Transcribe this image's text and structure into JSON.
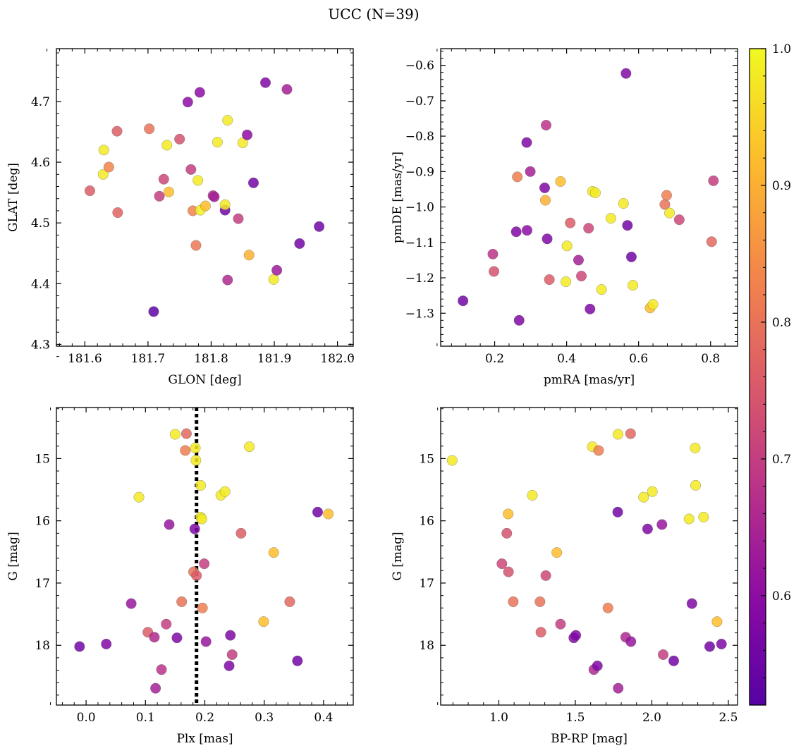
{
  "figure_title": "UCC (N=39)",
  "colorbar": {
    "colormap": "plasma",
    "range": [
      0.52,
      1.0
    ],
    "ticks": [
      0.6,
      0.7,
      0.8,
      0.9,
      1.0
    ],
    "tick_labels": [
      "0.6",
      "0.7",
      "0.8",
      "0.9",
      "1.0"
    ]
  },
  "chart_data": [
    {
      "type": "scatter",
      "xlabel": "GLON [deg]",
      "ylabel": "GLAT [deg]",
      "xlim": [
        181.555,
        182.025
      ],
      "ylim": [
        4.297,
        4.787
      ],
      "xticks": [
        181.6,
        181.7,
        181.8,
        181.9,
        182.0
      ],
      "xtick_labels": [
        "181.6",
        "181.7",
        "181.8",
        "181.9",
        "182.0"
      ],
      "yticks": [
        4.3,
        4.4,
        4.5,
        4.6,
        4.7
      ],
      "ytick_labels": [
        "4.3",
        "4.4",
        "4.5",
        "4.6",
        "4.7"
      ],
      "points": [
        {
          "x": 181.608,
          "y": 4.553,
          "c": 0.76
        },
        {
          "x": 181.63,
          "y": 4.62,
          "c": 0.98
        },
        {
          "x": 181.629,
          "y": 4.58,
          "c": 0.98
        },
        {
          "x": 181.638,
          "y": 4.592,
          "c": 0.83
        },
        {
          "x": 181.651,
          "y": 4.651,
          "c": 0.76
        },
        {
          "x": 181.652,
          "y": 4.517,
          "c": 0.77
        },
        {
          "x": 181.702,
          "y": 4.655,
          "c": 0.8
        },
        {
          "x": 181.709,
          "y": 4.354,
          "c": 0.53
        },
        {
          "x": 181.718,
          "y": 4.544,
          "c": 0.7
        },
        {
          "x": 181.725,
          "y": 4.572,
          "c": 0.72
        },
        {
          "x": 181.73,
          "y": 4.628,
          "c": 0.98
        },
        {
          "x": 181.733,
          "y": 4.551,
          "c": 0.92
        },
        {
          "x": 181.75,
          "y": 4.638,
          "c": 0.74
        },
        {
          "x": 181.763,
          "y": 4.699,
          "c": 0.6
        },
        {
          "x": 181.768,
          "y": 4.588,
          "c": 0.7
        },
        {
          "x": 181.771,
          "y": 4.52,
          "c": 0.83
        },
        {
          "x": 181.776,
          "y": 4.463,
          "c": 0.81
        },
        {
          "x": 181.779,
          "y": 4.57,
          "c": 0.98
        },
        {
          "x": 181.782,
          "y": 4.715,
          "c": 0.6
        },
        {
          "x": 181.783,
          "y": 4.521,
          "c": 0.99
        },
        {
          "x": 181.791,
          "y": 4.528,
          "c": 0.92
        },
        {
          "x": 181.803,
          "y": 4.545,
          "c": 0.66
        },
        {
          "x": 181.805,
          "y": 4.543,
          "c": 0.64
        },
        {
          "x": 181.81,
          "y": 4.633,
          "c": 0.98
        },
        {
          "x": 181.822,
          "y": 4.521,
          "c": 0.56
        },
        {
          "x": 181.822,
          "y": 4.53,
          "c": 0.98
        },
        {
          "x": 181.826,
          "y": 4.406,
          "c": 0.66
        },
        {
          "x": 181.826,
          "y": 4.669,
          "c": 0.98
        },
        {
          "x": 181.843,
          "y": 4.507,
          "c": 0.7
        },
        {
          "x": 181.85,
          "y": 4.632,
          "c": 0.98
        },
        {
          "x": 181.857,
          "y": 4.645,
          "c": 0.6
        },
        {
          "x": 181.86,
          "y": 4.447,
          "c": 0.9
        },
        {
          "x": 181.867,
          "y": 4.566,
          "c": 0.56
        },
        {
          "x": 181.886,
          "y": 4.731,
          "c": 0.58
        },
        {
          "x": 181.899,
          "y": 4.407,
          "c": 0.98
        },
        {
          "x": 181.904,
          "y": 4.422,
          "c": 0.63
        },
        {
          "x": 181.92,
          "y": 4.72,
          "c": 0.64
        },
        {
          "x": 181.94,
          "y": 4.466,
          "c": 0.56
        },
        {
          "x": 181.971,
          "y": 4.494,
          "c": 0.56
        }
      ]
    },
    {
      "type": "scatter",
      "xlabel": "pmRA [mas/yr]",
      "ylabel": "pmDE [mas/yr]",
      "xlim": [
        0.05,
        0.875
      ],
      "ylim": [
        -1.393,
        -0.553
      ],
      "xticks": [
        0.2,
        0.4,
        0.6,
        0.8
      ],
      "xtick_labels": [
        "0.2",
        "0.4",
        "0.6",
        "0.8"
      ],
      "yticks": [
        -1.3,
        -1.2,
        -1.1,
        -1.0,
        -0.9,
        -0.8,
        -0.7,
        -0.6
      ],
      "ytick_labels": [
        "−1.3",
        "−1.2",
        "−1.1",
        "−1.0",
        "−0.9",
        "−0.8",
        "−0.7",
        "−0.6"
      ],
      "points": [
        {
          "x": 0.112,
          "y": -1.265,
          "c": 0.56
        },
        {
          "x": 0.195,
          "y": -1.133,
          "c": 0.68
        },
        {
          "x": 0.198,
          "y": -1.182,
          "c": 0.74
        },
        {
          "x": 0.26,
          "y": -1.07,
          "c": 0.58
        },
        {
          "x": 0.263,
          "y": -0.915,
          "c": 0.82
        },
        {
          "x": 0.268,
          "y": -1.32,
          "c": 0.58
        },
        {
          "x": 0.289,
          "y": -0.818,
          "c": 0.58
        },
        {
          "x": 0.29,
          "y": -1.066,
          "c": 0.6
        },
        {
          "x": 0.299,
          "y": -0.9,
          "c": 0.64
        },
        {
          "x": 0.339,
          "y": -0.946,
          "c": 0.58
        },
        {
          "x": 0.341,
          "y": -0.981,
          "c": 0.9
        },
        {
          "x": 0.343,
          "y": -0.769,
          "c": 0.68
        },
        {
          "x": 0.346,
          "y": -1.09,
          "c": 0.58
        },
        {
          "x": 0.352,
          "y": -1.205,
          "c": 0.76
        },
        {
          "x": 0.383,
          "y": -0.928,
          "c": 0.92
        },
        {
          "x": 0.398,
          "y": -1.211,
          "c": 0.98
        },
        {
          "x": 0.401,
          "y": -1.11,
          "c": 0.98
        },
        {
          "x": 0.41,
          "y": -1.045,
          "c": 0.76
        },
        {
          "x": 0.433,
          "y": -1.15,
          "c": 0.64
        },
        {
          "x": 0.441,
          "y": -1.195,
          "c": 0.72
        },
        {
          "x": 0.461,
          "y": -1.06,
          "c": 0.72
        },
        {
          "x": 0.465,
          "y": -1.288,
          "c": 0.58
        },
        {
          "x": 0.472,
          "y": -0.956,
          "c": 0.98
        },
        {
          "x": 0.48,
          "y": -0.96,
          "c": 0.98
        },
        {
          "x": 0.497,
          "y": -1.233,
          "c": 0.98
        },
        {
          "x": 0.523,
          "y": -1.032,
          "c": 0.98
        },
        {
          "x": 0.558,
          "y": -0.99,
          "c": 0.98
        },
        {
          "x": 0.565,
          "y": -0.623,
          "c": 0.58
        },
        {
          "x": 0.569,
          "y": -1.052,
          "c": 0.56
        },
        {
          "x": 0.58,
          "y": -1.141,
          "c": 0.56
        },
        {
          "x": 0.584,
          "y": -1.221,
          "c": 0.98
        },
        {
          "x": 0.632,
          "y": -1.285,
          "c": 0.92
        },
        {
          "x": 0.64,
          "y": -1.275,
          "c": 0.98
        },
        {
          "x": 0.673,
          "y": -0.993,
          "c": 0.8
        },
        {
          "x": 0.678,
          "y": -0.967,
          "c": 0.82
        },
        {
          "x": 0.686,
          "y": -1.017,
          "c": 0.98
        },
        {
          "x": 0.713,
          "y": -1.036,
          "c": 0.72
        },
        {
          "x": 0.803,
          "y": -1.098,
          "c": 0.78
        },
        {
          "x": 0.808,
          "y": -0.926,
          "c": 0.7
        }
      ]
    },
    {
      "type": "scatter",
      "xlabel": "Plx [mas]",
      "ylabel": "G [mag]",
      "xlim": [
        -0.05,
        0.45
      ],
      "ylim": [
        18.96,
        14.18
      ],
      "y_inverted": true,
      "vline": {
        "x": 0.186,
        "style": "dotted",
        "color": "#000000"
      },
      "xticks": [
        0.0,
        0.1,
        0.2,
        0.3,
        0.4
      ],
      "xtick_labels": [
        "0.0",
        "0.1",
        "0.2",
        "0.3",
        "0.4"
      ],
      "yticks": [
        15,
        16,
        17,
        18
      ],
      "ytick_labels": [
        "15",
        "16",
        "17",
        "18"
      ],
      "points": [
        {
          "x": -0.011,
          "y": 18.02,
          "c": 0.56
        },
        {
          "x": 0.034,
          "y": 17.98,
          "c": 0.58
        },
        {
          "x": 0.076,
          "y": 17.33,
          "c": 0.62
        },
        {
          "x": 0.089,
          "y": 15.62,
          "c": 0.98
        },
        {
          "x": 0.104,
          "y": 17.79,
          "c": 0.76
        },
        {
          "x": 0.115,
          "y": 17.87,
          "c": 0.66
        },
        {
          "x": 0.117,
          "y": 18.69,
          "c": 0.64
        },
        {
          "x": 0.127,
          "y": 18.39,
          "c": 0.68
        },
        {
          "x": 0.135,
          "y": 17.66,
          "c": 0.7
        },
        {
          "x": 0.14,
          "y": 16.06,
          "c": 0.62
        },
        {
          "x": 0.15,
          "y": 14.61,
          "c": 0.98
        },
        {
          "x": 0.153,
          "y": 17.88,
          "c": 0.58
        },
        {
          "x": 0.161,
          "y": 17.3,
          "c": 0.8
        },
        {
          "x": 0.167,
          "y": 14.87,
          "c": 0.82
        },
        {
          "x": 0.169,
          "y": 14.6,
          "c": 0.78
        },
        {
          "x": 0.181,
          "y": 16.82,
          "c": 0.8
        },
        {
          "x": 0.183,
          "y": 16.13,
          "c": 0.58
        },
        {
          "x": 0.184,
          "y": 14.83,
          "c": 0.98
        },
        {
          "x": 0.185,
          "y": 15.03,
          "c": 0.98
        },
        {
          "x": 0.186,
          "y": 16.88,
          "c": 0.76
        },
        {
          "x": 0.193,
          "y": 15.43,
          "c": 0.98
        },
        {
          "x": 0.193,
          "y": 15.94,
          "c": 0.98
        },
        {
          "x": 0.195,
          "y": 15.97,
          "c": 0.98
        },
        {
          "x": 0.196,
          "y": 17.4,
          "c": 0.82
        },
        {
          "x": 0.199,
          "y": 16.69,
          "c": 0.7
        },
        {
          "x": 0.202,
          "y": 17.94,
          "c": 0.62
        },
        {
          "x": 0.227,
          "y": 15.59,
          "c": 0.98
        },
        {
          "x": 0.234,
          "y": 15.53,
          "c": 0.98
        },
        {
          "x": 0.241,
          "y": 18.33,
          "c": 0.58
        },
        {
          "x": 0.243,
          "y": 17.84,
          "c": 0.58
        },
        {
          "x": 0.246,
          "y": 18.15,
          "c": 0.7
        },
        {
          "x": 0.261,
          "y": 16.2,
          "c": 0.76
        },
        {
          "x": 0.275,
          "y": 14.81,
          "c": 0.98
        },
        {
          "x": 0.299,
          "y": 17.62,
          "c": 0.92
        },
        {
          "x": 0.316,
          "y": 16.51,
          "c": 0.92
        },
        {
          "x": 0.343,
          "y": 17.3,
          "c": 0.78
        },
        {
          "x": 0.356,
          "y": 18.25,
          "c": 0.56
        },
        {
          "x": 0.39,
          "y": 15.86,
          "c": 0.56
        },
        {
          "x": 0.408,
          "y": 15.89,
          "c": 0.92
        }
      ]
    },
    {
      "type": "scatter",
      "xlabel": "BP-RP [mag]",
      "ylabel": "G [mag]",
      "xlim": [
        0.62,
        2.56
      ],
      "ylim": [
        18.96,
        14.18
      ],
      "y_inverted": true,
      "xticks": [
        1.0,
        1.5,
        2.0,
        2.5
      ],
      "xtick_labels": [
        "1.0",
        "1.5",
        "2.0",
        "2.5"
      ],
      "yticks": [
        15,
        16,
        17,
        18
      ],
      "ytick_labels": [
        "15",
        "16",
        "17",
        "18"
      ],
      "points": [
        {
          "x": 0.695,
          "y": 15.03,
          "c": 0.98
        },
        {
          "x": 1.02,
          "y": 16.69,
          "c": 0.72
        },
        {
          "x": 1.052,
          "y": 16.2,
          "c": 0.74
        },
        {
          "x": 1.061,
          "y": 15.89,
          "c": 0.92
        },
        {
          "x": 1.063,
          "y": 16.82,
          "c": 0.74
        },
        {
          "x": 1.094,
          "y": 17.3,
          "c": 0.8
        },
        {
          "x": 1.219,
          "y": 15.59,
          "c": 0.98
        },
        {
          "x": 1.269,
          "y": 17.3,
          "c": 0.8
        },
        {
          "x": 1.275,
          "y": 17.79,
          "c": 0.76
        },
        {
          "x": 1.307,
          "y": 16.88,
          "c": 0.72
        },
        {
          "x": 1.379,
          "y": 16.51,
          "c": 0.92
        },
        {
          "x": 1.403,
          "y": 17.66,
          "c": 0.7
        },
        {
          "x": 1.49,
          "y": 17.88,
          "c": 0.58
        },
        {
          "x": 1.503,
          "y": 17.84,
          "c": 0.58
        },
        {
          "x": 1.611,
          "y": 14.81,
          "c": 0.98
        },
        {
          "x": 1.621,
          "y": 18.39,
          "c": 0.66
        },
        {
          "x": 1.644,
          "y": 18.33,
          "c": 0.58
        },
        {
          "x": 1.652,
          "y": 14.87,
          "c": 0.82
        },
        {
          "x": 1.713,
          "y": 17.4,
          "c": 0.82
        },
        {
          "x": 1.777,
          "y": 15.86,
          "c": 0.56
        },
        {
          "x": 1.779,
          "y": 14.61,
          "c": 0.98
        },
        {
          "x": 1.78,
          "y": 18.69,
          "c": 0.64
        },
        {
          "x": 1.829,
          "y": 17.87,
          "c": 0.66
        },
        {
          "x": 1.861,
          "y": 14.6,
          "c": 0.78
        },
        {
          "x": 1.863,
          "y": 17.94,
          "c": 0.62
        },
        {
          "x": 1.946,
          "y": 15.62,
          "c": 0.98
        },
        {
          "x": 1.972,
          "y": 16.13,
          "c": 0.58
        },
        {
          "x": 2.003,
          "y": 15.53,
          "c": 0.98
        },
        {
          "x": 2.066,
          "y": 16.06,
          "c": 0.62
        },
        {
          "x": 2.074,
          "y": 18.15,
          "c": 0.7
        },
        {
          "x": 2.143,
          "y": 18.25,
          "c": 0.56
        },
        {
          "x": 2.243,
          "y": 15.97,
          "c": 0.98
        },
        {
          "x": 2.262,
          "y": 17.33,
          "c": 0.58
        },
        {
          "x": 2.283,
          "y": 14.83,
          "c": 0.98
        },
        {
          "x": 2.286,
          "y": 15.43,
          "c": 0.98
        },
        {
          "x": 2.338,
          "y": 15.94,
          "c": 0.98
        },
        {
          "x": 2.378,
          "y": 18.02,
          "c": 0.56
        },
        {
          "x": 2.426,
          "y": 17.62,
          "c": 0.92
        },
        {
          "x": 2.455,
          "y": 17.98,
          "c": 0.58
        }
      ]
    }
  ]
}
